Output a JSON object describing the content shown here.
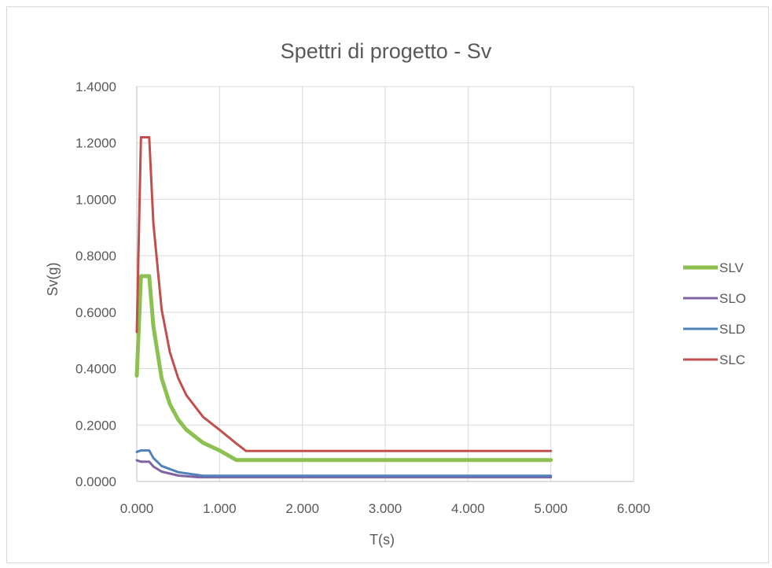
{
  "chart_data": {
    "type": "line",
    "title": "Spettri di progetto - Sv",
    "xlabel": "T(s)",
    "ylabel": "Sv(g)",
    "xlim": [
      0,
      6
    ],
    "ylim": [
      0,
      1.4
    ],
    "x_ticks": [
      "0.000",
      "1.000",
      "2.000",
      "3.000",
      "4.000",
      "5.000",
      "6.000"
    ],
    "y_ticks": [
      "0.0000",
      "0.2000",
      "0.4000",
      "0.6000",
      "0.8000",
      "1.0000",
      "1.2000",
      "1.4000"
    ],
    "grid": true,
    "legend_position": "right",
    "series": [
      {
        "name": "SLV",
        "color": "#8cc152",
        "width": 5,
        "x": [
          0,
          0.05,
          0.15,
          0.2,
          0.3,
          0.4,
          0.5,
          0.6,
          0.8,
          1.0,
          1.2,
          5.0
        ],
        "y": [
          0.375,
          0.728,
          0.728,
          0.55,
          0.366,
          0.274,
          0.219,
          0.183,
          0.137,
          0.11,
          0.076,
          0.076
        ]
      },
      {
        "name": "SLO",
        "color": "#8064a2",
        "width": 3,
        "x": [
          0,
          0.05,
          0.15,
          0.2,
          0.3,
          0.5,
          0.75,
          5.0
        ],
        "y": [
          0.075,
          0.07,
          0.07,
          0.053,
          0.035,
          0.021,
          0.015,
          0.015
        ]
      },
      {
        "name": "SLD",
        "color": "#4f81bd",
        "width": 3,
        "x": [
          0,
          0.05,
          0.15,
          0.2,
          0.3,
          0.5,
          0.8,
          5.0
        ],
        "y": [
          0.105,
          0.11,
          0.11,
          0.083,
          0.055,
          0.033,
          0.02,
          0.02
        ]
      },
      {
        "name": "SLC",
        "color": "#c0504d",
        "width": 3,
        "x": [
          0,
          0.05,
          0.15,
          0.2,
          0.3,
          0.4,
          0.5,
          0.6,
          0.8,
          1.0,
          1.2,
          1.32,
          5.0
        ],
        "y": [
          0.53,
          1.22,
          1.22,
          0.915,
          0.61,
          0.458,
          0.366,
          0.305,
          0.229,
          0.183,
          0.135,
          0.108,
          0.108
        ]
      }
    ]
  }
}
